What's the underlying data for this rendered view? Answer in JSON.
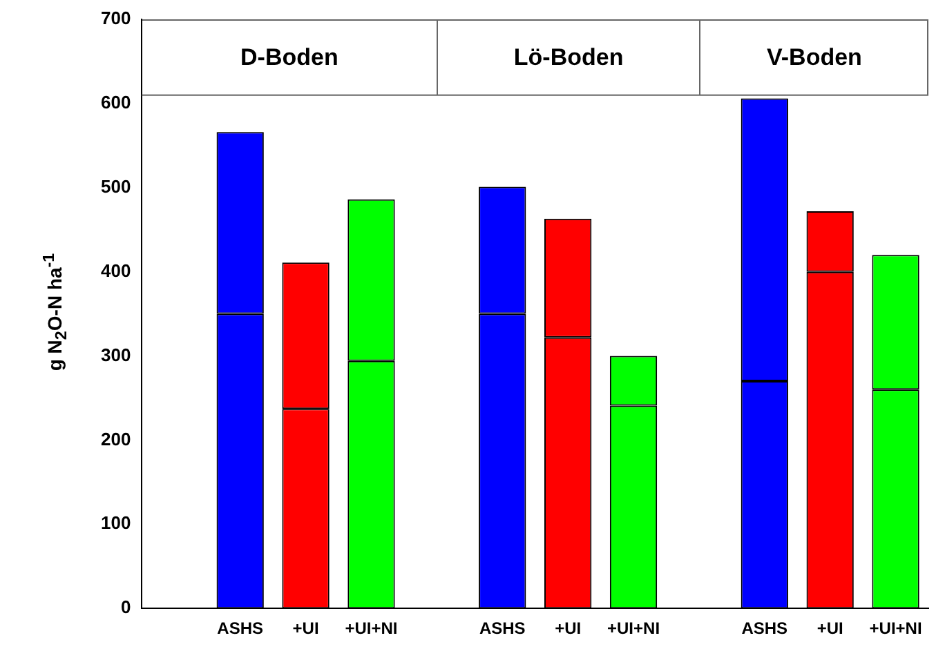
{
  "chart_data": {
    "type": "bar",
    "stacked": true,
    "ylabel": "g N$_{2}$O-N ha$^{-1}$",
    "annotations": [
      "D-Boden",
      "Lö-Boden",
      "V-Boden"
    ],
    "categories": [
      null,
      "ASHS",
      "+UI",
      "+UI+NI",
      null,
      "ASHS",
      "+UI",
      "+UI+NI",
      null,
      "ASHS",
      "+UI",
      "+UI+NI"
    ],
    "series": [
      {
        "colors": [
          null,
          "#0000ff",
          "#ff0000",
          "#00ff00",
          null,
          "#0000ff",
          "#ff0000",
          "#00ff00",
          null,
          "#0000ff",
          "#ff0000",
          "#00ff00"
        ],
        "values": [
          null,
          350,
          237,
          294,
          null,
          350,
          322,
          241,
          null,
          270,
          400,
          260
        ]
      },
      {
        "colors": [
          null,
          "#0000ff",
          "#ff0000",
          "#00ff00",
          null,
          "#0000ff",
          "#ff0000",
          "#00ff00",
          null,
          "#0000ff",
          "#ff0000",
          "#00ff00"
        ],
        "values": [
          null,
          216,
          174,
          192,
          null,
          151,
          141,
          59,
          null,
          336,
          72,
          160
        ]
      }
    ],
    "ylim": [
      0,
      700
    ],
    "yticks": [
      0,
      100,
      200,
      300,
      400,
      500,
      600,
      700
    ],
    "ref_lines": [
      {
        "axis": "y",
        "value": 610,
        "color": "#666666"
      }
    ],
    "grid": false,
    "legend": false
  }
}
